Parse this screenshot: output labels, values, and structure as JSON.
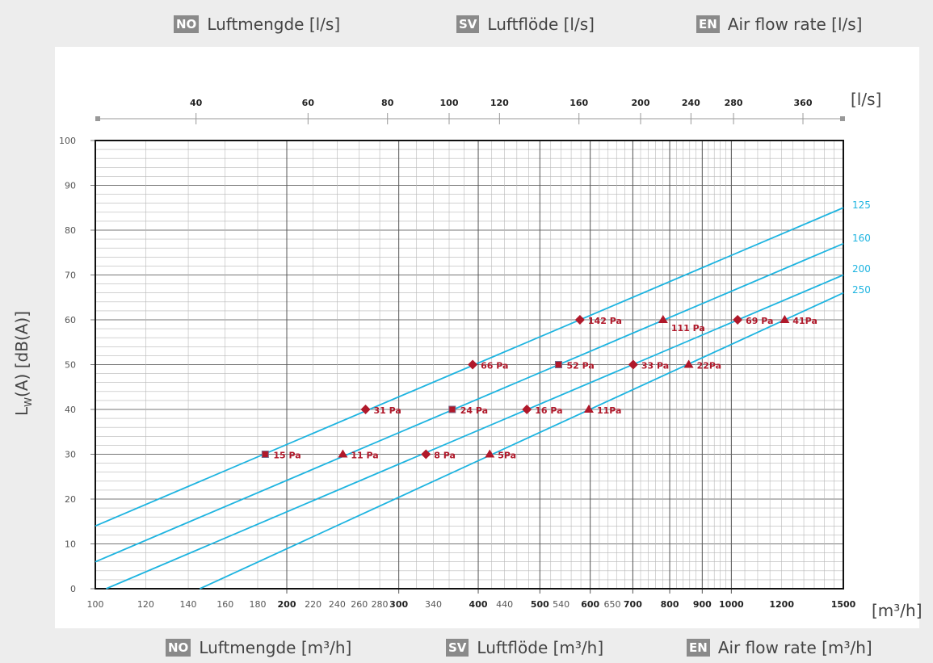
{
  "top_legend": [
    {
      "badge": "NO",
      "text": "Luftmengde [l/s]"
    },
    {
      "badge": "SV",
      "text": "Luftflöde [l/s]"
    },
    {
      "badge": "EN",
      "text": "Air flow rate [l/s]"
    }
  ],
  "bottom_legend": [
    {
      "badge": "NO",
      "text": "Luftmengde [m³/h]"
    },
    {
      "badge": "SV",
      "text": "Luftflöde [m³/h]"
    },
    {
      "badge": "EN",
      "text": "Air flow rate [m³/h]"
    }
  ],
  "colors": {
    "series": "#1eb4e0",
    "points": "#b0182a",
    "grid": "#999999"
  },
  "chart_data": {
    "type": "line",
    "x_scale": "log",
    "xlim": [
      100,
      1500
    ],
    "ylim": [
      0,
      100
    ],
    "ylabel_main": "L",
    "ylabel_sub": "W",
    "ylabel_rest": "(A) [dB(A)]",
    "xlabel_unit": "[m³/h]",
    "top_axis_unit": "[l/s]",
    "x_ticks": [
      {
        "v": 100,
        "t": "100",
        "b": false
      },
      {
        "v": 120,
        "t": "120",
        "b": false
      },
      {
        "v": 140,
        "t": "140",
        "b": false
      },
      {
        "v": 160,
        "t": "160",
        "b": false
      },
      {
        "v": 180,
        "t": "180",
        "b": false
      },
      {
        "v": 200,
        "t": "200",
        "b": true
      },
      {
        "v": 220,
        "t": "220",
        "b": false
      },
      {
        "v": 240,
        "t": "240",
        "b": false
      },
      {
        "v": 260,
        "t": "260",
        "b": false
      },
      {
        "v": 280,
        "t": "280",
        "b": false
      },
      {
        "v": 300,
        "t": "300",
        "b": true
      },
      {
        "v": 340,
        "t": "340",
        "b": false
      },
      {
        "v": 400,
        "t": "400",
        "b": true
      },
      {
        "v": 440,
        "t": "440",
        "b": false
      },
      {
        "v": 500,
        "t": "500",
        "b": true
      },
      {
        "v": 540,
        "t": "540",
        "b": false
      },
      {
        "v": 600,
        "t": "600",
        "b": true
      },
      {
        "v": 650,
        "t": "650",
        "b": false
      },
      {
        "v": 700,
        "t": "700",
        "b": true
      },
      {
        "v": 800,
        "t": "800",
        "b": true
      },
      {
        "v": 900,
        "t": "900",
        "b": true
      },
      {
        "v": 1000,
        "t": "1000",
        "b": true
      },
      {
        "v": 1200,
        "t": "1200",
        "b": true
      },
      {
        "v": 1500,
        "t": "1500",
        "b": true
      }
    ],
    "y_ticks": [
      0,
      10,
      20,
      30,
      40,
      50,
      60,
      70,
      80,
      90,
      100
    ],
    "top_ticks_ls": [
      40,
      60,
      80,
      100,
      120,
      160,
      200,
      240,
      280,
      360
    ],
    "series": [
      {
        "name": "125",
        "x": [
          100,
          1500
        ],
        "y": [
          14,
          85
        ]
      },
      {
        "name": "160",
        "x": [
          100,
          1500
        ],
        "y": [
          6,
          77
        ]
      },
      {
        "name": "200",
        "x": [
          104,
          1500
        ],
        "y": [
          0,
          70
        ]
      },
      {
        "name": "250",
        "x": [
          146,
          1500
        ],
        "y": [
          0,
          66
        ]
      }
    ],
    "points": [
      {
        "x": 185,
        "y": 30,
        "m": "square",
        "label": "15 Pa"
      },
      {
        "x": 266,
        "y": 40,
        "m": "diamond",
        "label": "31 Pa"
      },
      {
        "x": 392,
        "y": 50,
        "m": "diamond",
        "label": "66 Pa"
      },
      {
        "x": 578,
        "y": 60,
        "m": "diamond",
        "label": "142 Pa"
      },
      {
        "x": 245,
        "y": 30,
        "m": "triangle",
        "label": "11 Pa"
      },
      {
        "x": 364,
        "y": 40,
        "m": "square",
        "label": "24 Pa"
      },
      {
        "x": 535,
        "y": 50,
        "m": "square",
        "label": "52 Pa"
      },
      {
        "x": 781,
        "y": 60,
        "m": "triangle",
        "label": "111 Pa"
      },
      {
        "x": 331,
        "y": 30,
        "m": "diamond",
        "label": "8 Pa"
      },
      {
        "x": 477,
        "y": 40,
        "m": "diamond",
        "label": "16 Pa"
      },
      {
        "x": 701,
        "y": 50,
        "m": "diamond",
        "label": "33 Pa"
      },
      {
        "x": 1023,
        "y": 60,
        "m": "diamond",
        "label": "69 Pa"
      },
      {
        "x": 417,
        "y": 30,
        "m": "triangle",
        "label": "5Pa"
      },
      {
        "x": 597,
        "y": 40,
        "m": "triangle",
        "label": "11Pa"
      },
      {
        "x": 857,
        "y": 50,
        "m": "triangle",
        "label": "22Pa"
      },
      {
        "x": 1213,
        "y": 60,
        "m": "triangle",
        "label": "41Pa"
      }
    ]
  }
}
